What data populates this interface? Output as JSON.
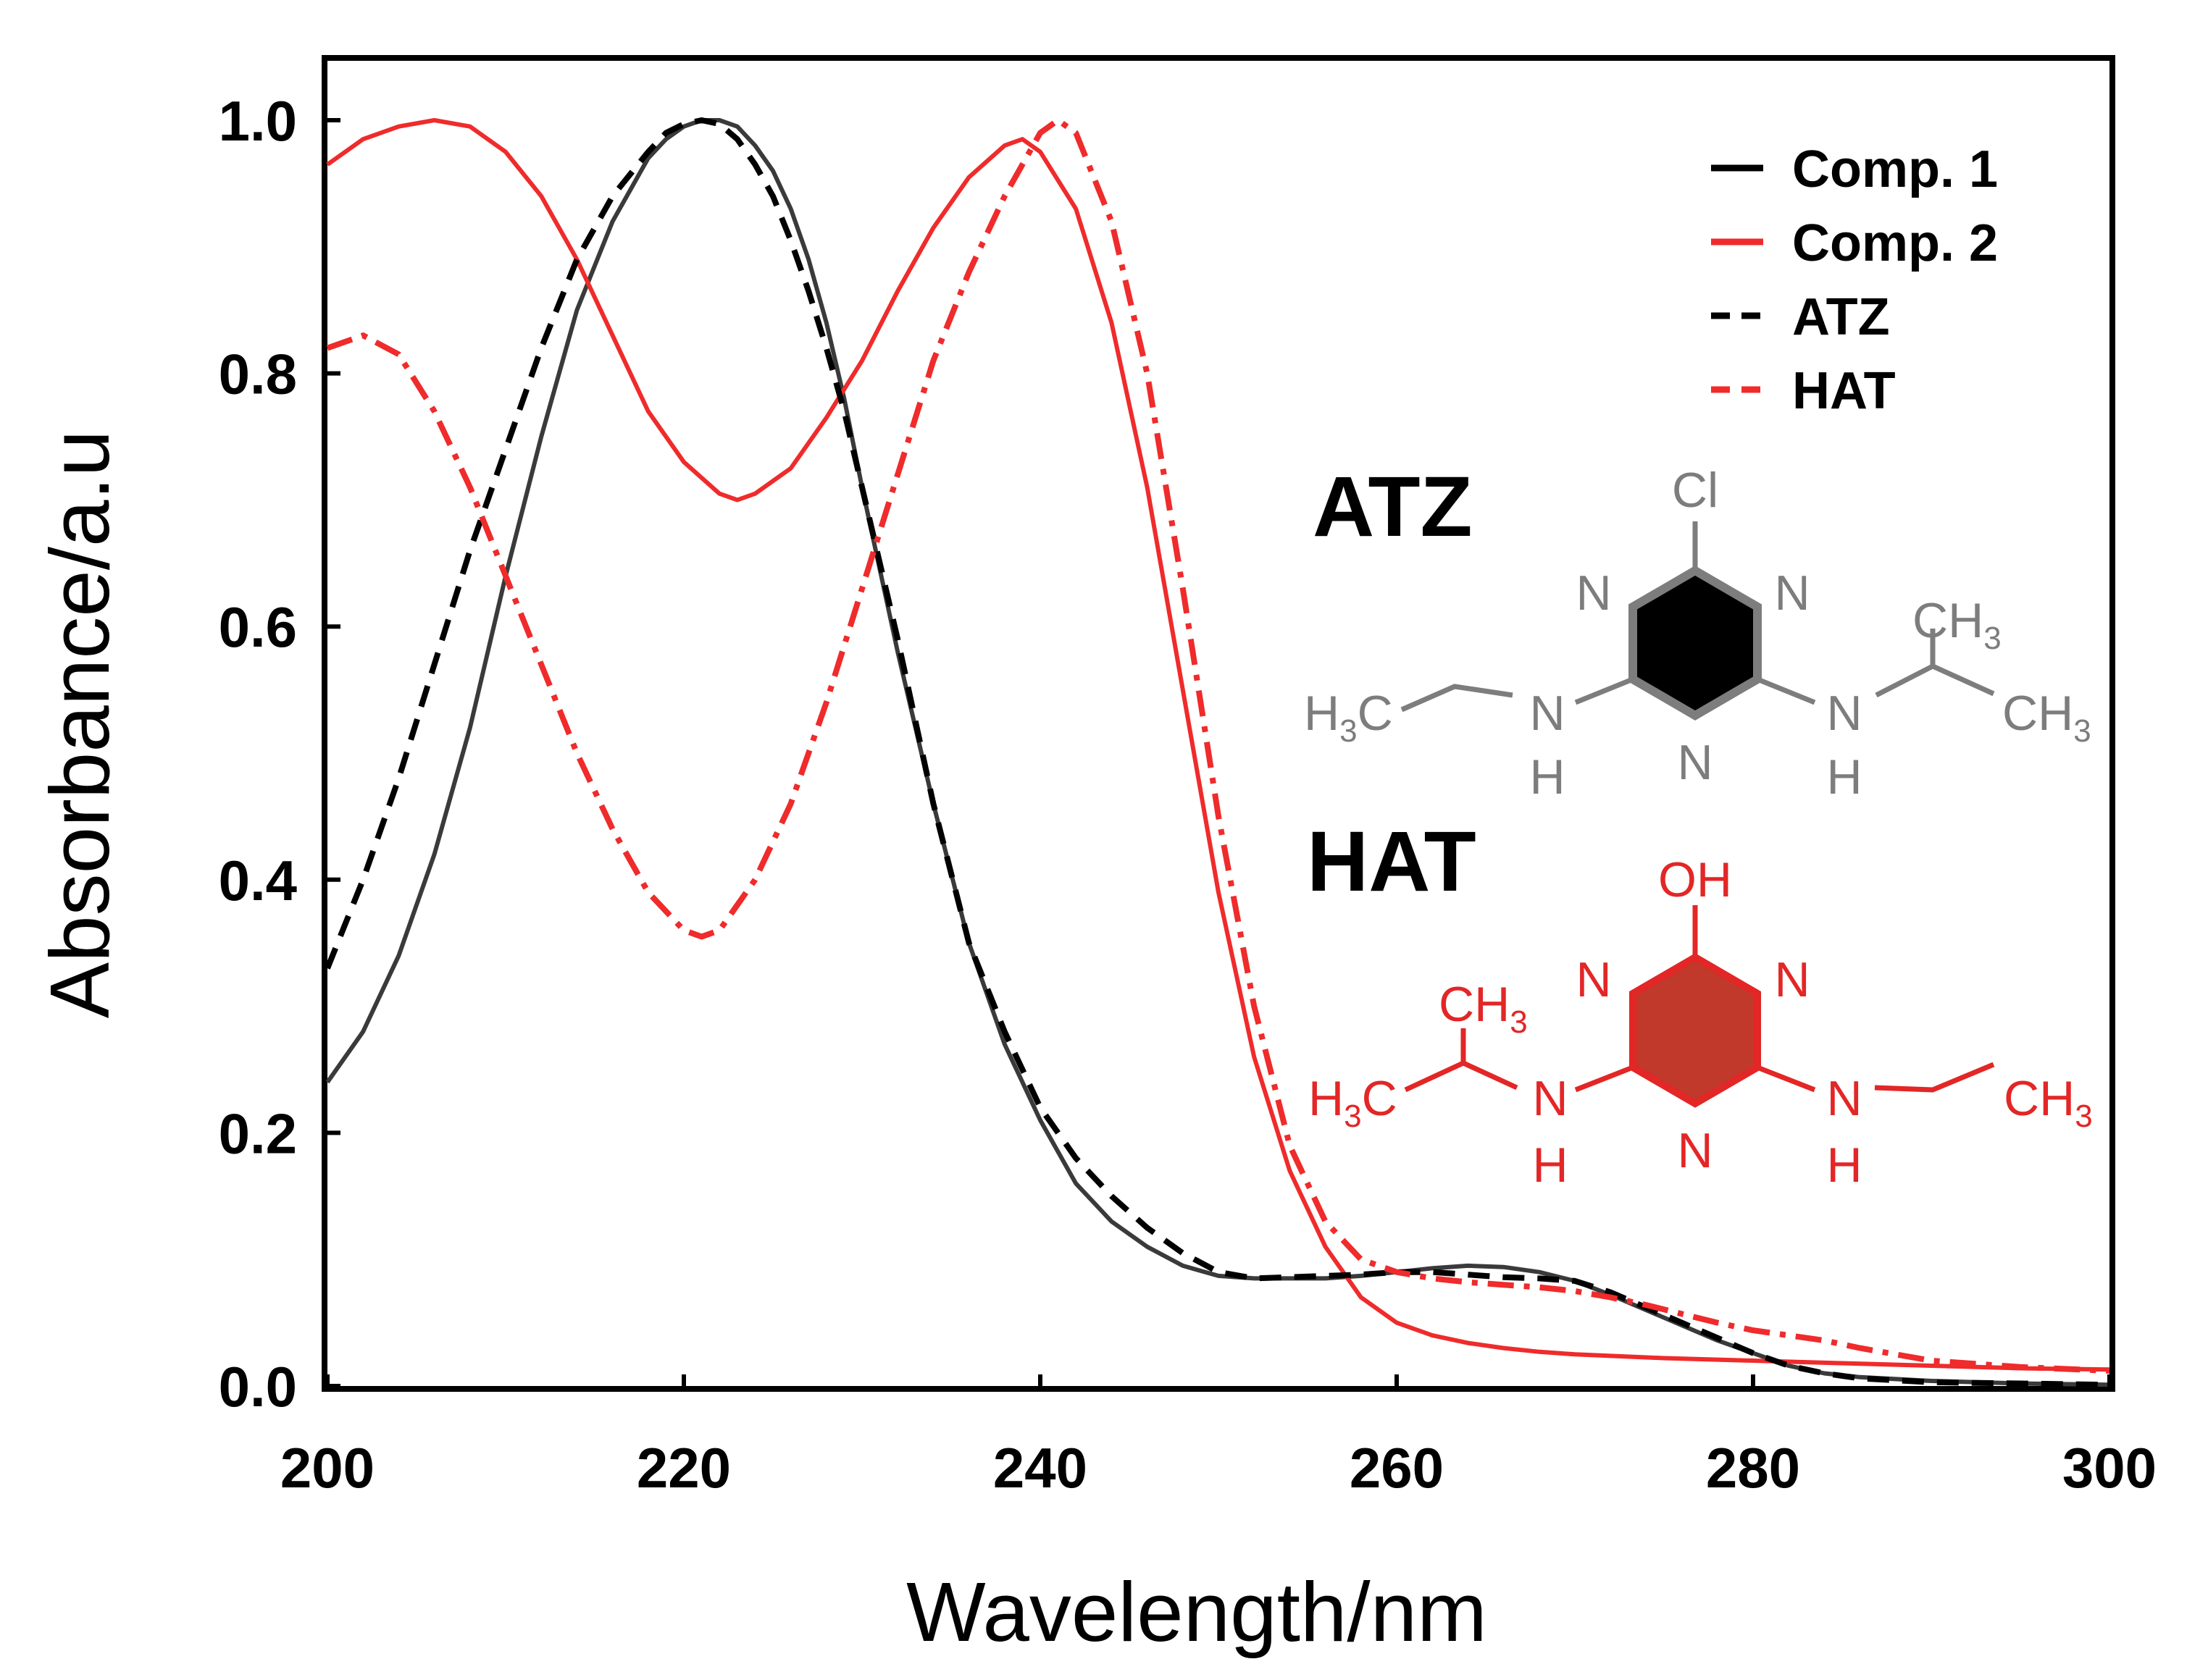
{
  "chart_data": {
    "type": "line",
    "xlabel": "Wavelength/nm",
    "ylabel": "Absorbance/a.u",
    "xlim": [
      200,
      300
    ],
    "ylim": [
      0.0,
      1.0
    ],
    "x_ticks": [
      200,
      220,
      240,
      260,
      280,
      300
    ],
    "x_tick_labels": [
      "200",
      "220",
      "240",
      "260",
      "280",
      "300"
    ],
    "y_ticks": [
      0.0,
      0.2,
      0.4,
      0.6,
      0.8,
      1.0
    ],
    "y_tick_labels": [
      "0.0",
      "0.2",
      "0.4",
      "0.6",
      "0.8",
      "1.0"
    ],
    "legend_position": "top-right",
    "series": [
      {
        "name": "Comp. 1",
        "color": "#3a3a3a",
        "style": "solid",
        "x": [
          200,
          202,
          204,
          206,
          208,
          210,
          212,
          214,
          216,
          218,
          219,
          220,
          221,
          222,
          223,
          224,
          225,
          226,
          227,
          228,
          229,
          230,
          232,
          234,
          236,
          238,
          240,
          242,
          244,
          246,
          248,
          250,
          252,
          254,
          256,
          258,
          260,
          262,
          264,
          266,
          268,
          270,
          272,
          274,
          276,
          278,
          280,
          282,
          284,
          286,
          290,
          295,
          300
        ],
        "y": [
          0.24,
          0.28,
          0.34,
          0.42,
          0.52,
          0.64,
          0.75,
          0.85,
          0.92,
          0.97,
          0.985,
          0.995,
          1.0,
          1.0,
          0.995,
          0.98,
          0.96,
          0.93,
          0.89,
          0.84,
          0.78,
          0.71,
          0.58,
          0.46,
          0.35,
          0.27,
          0.21,
          0.16,
          0.13,
          0.11,
          0.095,
          0.087,
          0.085,
          0.085,
          0.085,
          0.087,
          0.09,
          0.093,
          0.095,
          0.094,
          0.09,
          0.083,
          0.072,
          0.06,
          0.048,
          0.036,
          0.026,
          0.016,
          0.01,
          0.007,
          0.004,
          0.002,
          0.001
        ]
      },
      {
        "name": "Comp. 2",
        "color": "#ef2b2b",
        "style": "solid",
        "x": [
          200,
          202,
          204,
          206,
          208,
          210,
          212,
          214,
          216,
          218,
          220,
          222,
          223,
          224,
          226,
          228,
          230,
          232,
          234,
          236,
          238,
          239,
          240,
          242,
          244,
          246,
          248,
          250,
          252,
          254,
          256,
          258,
          260,
          262,
          264,
          266,
          268,
          270,
          275,
          280,
          285,
          290,
          295,
          300
        ],
        "y": [
          0.965,
          0.985,
          0.995,
          1.0,
          0.995,
          0.975,
          0.94,
          0.89,
          0.83,
          0.77,
          0.73,
          0.705,
          0.7,
          0.705,
          0.725,
          0.765,
          0.81,
          0.865,
          0.915,
          0.955,
          0.98,
          0.985,
          0.975,
          0.93,
          0.84,
          0.71,
          0.55,
          0.39,
          0.26,
          0.17,
          0.11,
          0.07,
          0.05,
          0.04,
          0.034,
          0.03,
          0.027,
          0.025,
          0.022,
          0.02,
          0.018,
          0.016,
          0.014,
          0.013
        ]
      },
      {
        "name": "ATZ",
        "color": "#000000",
        "style": "dashed",
        "x": [
          200,
          202,
          204,
          206,
          208,
          210,
          212,
          214,
          216,
          218,
          219,
          220,
          221,
          222,
          223,
          224,
          225,
          226,
          227,
          228,
          229,
          230,
          232,
          234,
          236,
          238,
          240,
          242,
          244,
          246,
          248,
          250,
          252,
          254,
          256,
          258,
          260,
          262,
          264,
          266,
          268,
          270,
          272,
          274,
          276,
          278,
          280,
          282,
          284,
          286,
          290,
          295,
          300
        ],
        "y": [
          0.33,
          0.4,
          0.48,
          0.57,
          0.66,
          0.74,
          0.82,
          0.89,
          0.94,
          0.975,
          0.99,
          0.997,
          1.0,
          0.997,
          0.985,
          0.965,
          0.94,
          0.905,
          0.865,
          0.82,
          0.77,
          0.71,
          0.59,
          0.46,
          0.35,
          0.28,
          0.22,
          0.18,
          0.15,
          0.125,
          0.105,
          0.09,
          0.085,
          0.086,
          0.087,
          0.088,
          0.09,
          0.09,
          0.088,
          0.086,
          0.085,
          0.083,
          0.074,
          0.062,
          0.05,
          0.038,
          0.026,
          0.016,
          0.01,
          0.006,
          0.003,
          0.002,
          0.001
        ]
      },
      {
        "name": "HAT",
        "color": "#ef2b2b",
        "style": "dashdot",
        "x": [
          200,
          202,
          204,
          206,
          208,
          210,
          212,
          214,
          216,
          218,
          220,
          221,
          222,
          224,
          226,
          228,
          230,
          232,
          234,
          236,
          238,
          240,
          241,
          242,
          244,
          246,
          248,
          250,
          252,
          254,
          256,
          258,
          260,
          262,
          264,
          266,
          268,
          270,
          272,
          274,
          276,
          278,
          280,
          282,
          284,
          286,
          290,
          295,
          300
        ],
        "y": [
          0.82,
          0.83,
          0.815,
          0.77,
          0.71,
          0.64,
          0.57,
          0.5,
          0.44,
          0.39,
          0.36,
          0.355,
          0.36,
          0.4,
          0.46,
          0.54,
          0.63,
          0.72,
          0.81,
          0.88,
          0.94,
          0.99,
          1.0,
          0.99,
          0.92,
          0.8,
          0.63,
          0.45,
          0.3,
          0.19,
          0.13,
          0.1,
          0.09,
          0.085,
          0.082,
          0.08,
          0.078,
          0.075,
          0.07,
          0.064,
          0.057,
          0.05,
          0.044,
          0.04,
          0.036,
          0.03,
          0.02,
          0.015,
          0.012
        ]
      }
    ]
  },
  "molecules": {
    "atz": {
      "title": "ATZ",
      "color": "#7d7d7d",
      "ring_fill": "#000000",
      "top_atom": "Cl",
      "ring_n": [
        "N",
        "N",
        "N"
      ],
      "left_nh": [
        "N",
        "H"
      ],
      "right_nh": [
        "N",
        "H"
      ],
      "left_end": [
        "H",
        "3",
        "C"
      ],
      "right_ch3": [
        "CH",
        "3"
      ],
      "right_end": [
        "CH",
        "3"
      ]
    },
    "hat": {
      "title": "HAT",
      "color": "#e32626",
      "ring_fill": "#c0392b",
      "top_atom": "OH",
      "ring_n": [
        "N",
        "N",
        "N"
      ],
      "left_nh": [
        "N",
        "H"
      ],
      "right_nh": [
        "N",
        "H"
      ],
      "left_end": [
        "H",
        "3",
        "C"
      ],
      "left_ch3": [
        "CH",
        "3"
      ],
      "right_end": [
        "CH",
        "3"
      ]
    }
  }
}
